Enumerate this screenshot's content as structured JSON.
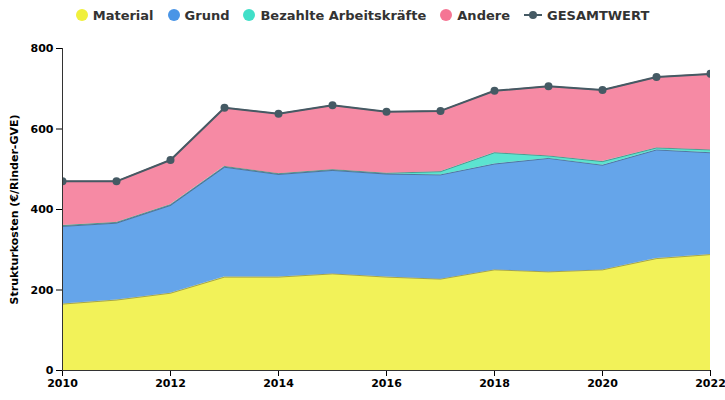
{
  "chart_data": {
    "type": "area",
    "stacked": true,
    "y_label": "Strukturkosten (€/Rinder-GVE)",
    "x": [
      2010,
      2011,
      2012,
      2013,
      2014,
      2015,
      2016,
      2017,
      2018,
      2019,
      2020,
      2021,
      2022
    ],
    "xlim": [
      2010,
      2022
    ],
    "xticks": [
      2010,
      2012,
      2014,
      2016,
      2018,
      2020,
      2022
    ],
    "ylim": [
      0,
      800
    ],
    "yticks": [
      0,
      200,
      400,
      600,
      800
    ],
    "grid": false,
    "legend": "top",
    "series": [
      {
        "name": "Material",
        "color": "#f0f03c",
        "type": "area",
        "values": [
          165,
          175,
          192,
          232,
          232,
          240,
          232,
          227,
          250,
          245,
          250,
          278,
          288
        ]
      },
      {
        "name": "Grund",
        "color": "#4a95e6",
        "type": "area",
        "values": [
          193,
          191,
          218,
          273,
          255,
          257,
          256,
          259,
          263,
          282,
          260,
          270,
          253
        ]
      },
      {
        "name": "Bezahlte Arbeitskräfte",
        "color": "#40dfc8",
        "type": "area",
        "values": [
          2,
          2,
          2,
          2,
          2,
          2,
          2,
          8,
          28,
          6,
          9,
          5,
          7
        ]
      },
      {
        "name": "Andere",
        "color": "#f57594",
        "type": "area",
        "values": [
          110,
          102,
          111,
          146,
          149,
          160,
          153,
          151,
          154,
          173,
          178,
          176,
          189
        ]
      },
      {
        "name": "GESAMTWERT",
        "color": "#455a64",
        "type": "line",
        "marker": "circle",
        "values": [
          470,
          470,
          523,
          653,
          638,
          659,
          643,
          645,
          695,
          706,
          697,
          729,
          737
        ]
      }
    ]
  }
}
